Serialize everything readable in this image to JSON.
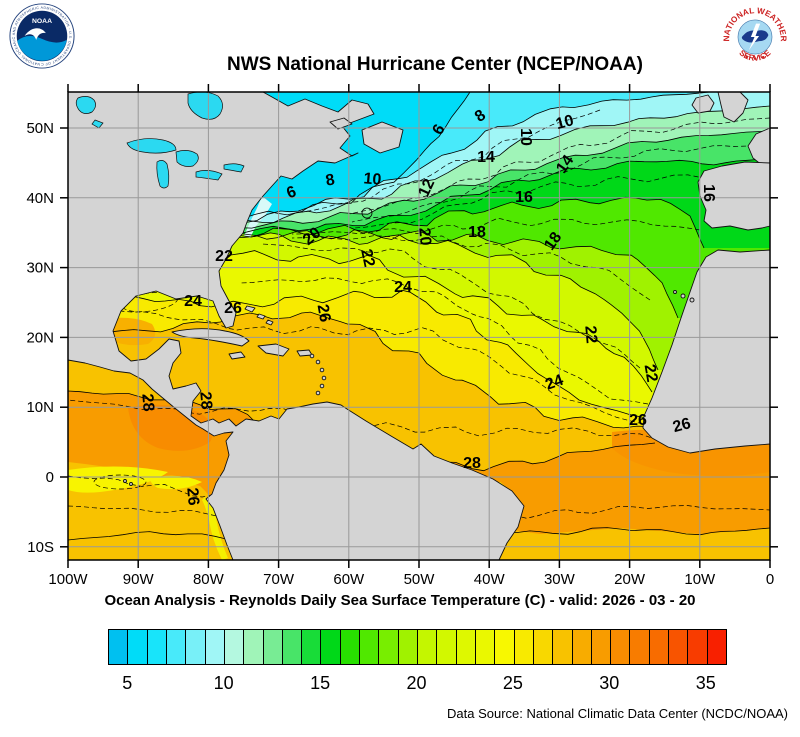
{
  "header": {
    "title": "NWS National Hurricane Center (NCEP/NOAA)"
  },
  "logos": {
    "noaa": {
      "ring_text": "NATIONAL OCEANIC AND ATMOSPHERIC ADMINISTRATION - U.S. DEPARTMENT OF COMMERCE",
      "center_text": "NOAA"
    },
    "nws": {
      "ring_text_top": "NATIONAL WEATHER",
      "ring_text_bottom": "SERVICE"
    }
  },
  "caption": {
    "text": "Ocean Analysis - Reynolds Daily Sea Surface Temperature (C) - valid: 2026 - 03 - 20"
  },
  "footer": {
    "data_source": "Data Source: National Climatic Data Center (NCDC/NOAA)"
  },
  "map": {
    "land_color": "#d4d4d4",
    "lake_color": "#2bd9f1",
    "grid_color": "#999999"
  },
  "chart_data": {
    "type": "heatmap",
    "title": "NWS National Hurricane Center (NCEP/NOAA)",
    "subtitle": "Ocean Analysis - Reynolds Daily Sea Surface Temperature (C) - valid: 2026 - 03 - 20",
    "region": "North Atlantic / Eastern Pacific",
    "grid": true,
    "x_tick_labels": [
      "100W",
      "90W",
      "80W",
      "70W",
      "60W",
      "50W",
      "40W",
      "30W",
      "20W",
      "10W",
      "0"
    ],
    "y_tick_labels": [
      "50N",
      "40N",
      "30N",
      "20N",
      "10N",
      "0",
      "10S"
    ],
    "sst_range_c": [
      4,
      36
    ],
    "isotherm_interval_c": 2,
    "isotherms_labeled_c": [
      6,
      8,
      10,
      12,
      14,
      16,
      18,
      20,
      22,
      24,
      26,
      28
    ],
    "colorbar": {
      "min": 4,
      "max": 36,
      "step": 1,
      "tick_labels": [
        5,
        10,
        15,
        20,
        25,
        30,
        35
      ],
      "palette": [
        "#00c0f0",
        "#00dcf8",
        "#18e4fa",
        "#48eafa",
        "#78f0f8",
        "#a0f6f6",
        "#b4f8e0",
        "#a0f4b8",
        "#78ec94",
        "#48e468",
        "#18dc38",
        "#00d818",
        "#28e000",
        "#50e800",
        "#78ee00",
        "#a0f200",
        "#c4f600",
        "#d2f800",
        "#def800",
        "#eaf800",
        "#f8f800",
        "#f8ea00",
        "#f8d800",
        "#f8c200",
        "#f8ac00",
        "#f89c00",
        "#f88c00",
        "#f87c00",
        "#f86c00",
        "#f85400",
        "#f83c00",
        "#f82000"
      ]
    },
    "contour_labels": [
      [
        6,
        293,
        197,
        -20
      ],
      [
        8,
        331,
        185,
        -10
      ],
      [
        10,
        372,
        184,
        5
      ],
      [
        6,
        443,
        132,
        -60
      ],
      [
        8,
        483,
        120,
        -35
      ],
      [
        10,
        521,
        137,
        90
      ],
      [
        10,
        566,
        127,
        -15
      ],
      [
        12,
        431,
        190,
        -65
      ],
      [
        14,
        486,
        162,
        0
      ],
      [
        14,
        569,
        167,
        -55
      ],
      [
        16,
        524,
        202,
        0
      ],
      [
        16,
        704,
        193,
        90
      ],
      [
        18,
        477,
        237,
        0
      ],
      [
        18,
        557,
        244,
        -55
      ],
      [
        20,
        315,
        240,
        -40
      ],
      [
        20,
        420,
        237,
        85
      ],
      [
        22,
        224,
        261,
        0
      ],
      [
        22,
        363,
        259,
        78
      ],
      [
        22,
        586,
        335,
        85
      ],
      [
        22,
        646,
        374,
        80
      ],
      [
        24,
        193,
        306,
        0
      ],
      [
        24,
        403,
        292,
        0
      ],
      [
        24,
        556,
        387,
        -20
      ],
      [
        26,
        233,
        313,
        0
      ],
      [
        26,
        319,
        314,
        80
      ],
      [
        26,
        638,
        425,
        0
      ],
      [
        26,
        683,
        430,
        -15
      ],
      [
        26,
        188,
        497,
        85
      ],
      [
        28,
        143,
        403,
        85
      ],
      [
        28,
        201,
        401,
        85
      ],
      [
        28,
        472,
        468,
        0
      ]
    ]
  }
}
